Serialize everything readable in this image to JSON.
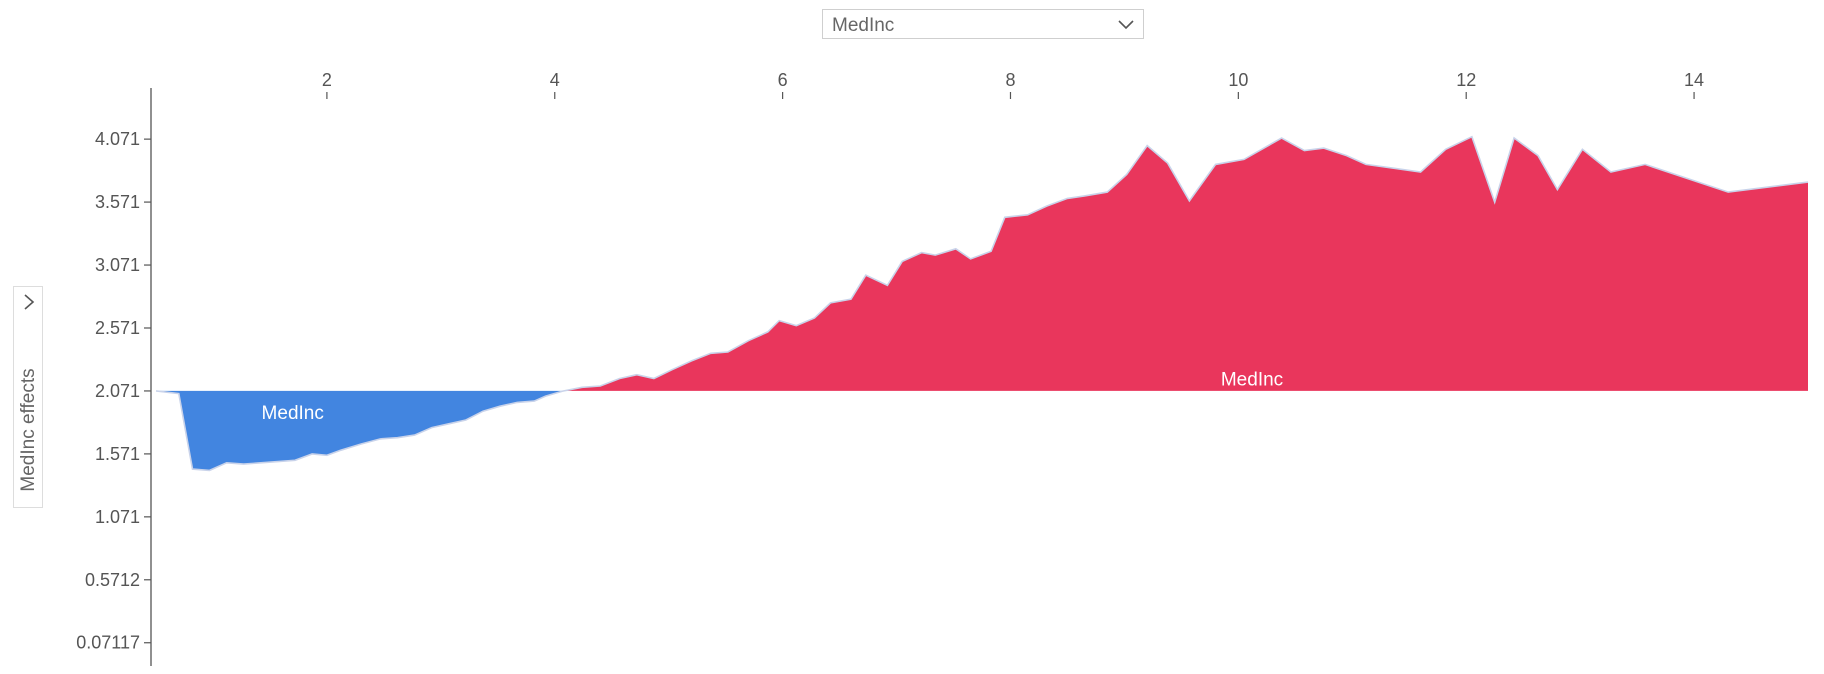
{
  "selector": {
    "value": "MedInc"
  },
  "ylabel_toggle": {
    "label": "MedInc effects"
  },
  "chart_data": {
    "type": "area",
    "title": "",
    "xlabel": "",
    "ylabel": "MedInc effects",
    "baseline": 2.071,
    "xlim": [
      0.5,
      15.0
    ],
    "ylim": [
      -0.05,
      4.35
    ],
    "x_ticks": [
      "2",
      "4",
      "6",
      "8",
      "10",
      "12",
      "14"
    ],
    "y_ticks": [
      "4.071",
      "3.571",
      "3.071",
      "2.571",
      "2.071",
      "1.571",
      "1.071",
      "0.5712",
      "0.07117"
    ],
    "area_labels": {
      "negative": "MedInc",
      "positive": "MedInc"
    },
    "colors": {
      "positive": "#e9365c",
      "negative": "#4285e0",
      "outline": "#c9d3ea",
      "axis": "#555555"
    },
    "series": [
      {
        "x": [
          0.5,
          0.7,
          0.82,
          0.97,
          1.12,
          1.27,
          1.42,
          1.57,
          1.72,
          1.87,
          2.0,
          2.12,
          2.3,
          2.47,
          2.62,
          2.77,
          2.92,
          3.07,
          3.22,
          3.37,
          3.52,
          3.67,
          3.82,
          3.92,
          4.07,
          4.24,
          4.4,
          4.57,
          4.72,
          4.87,
          5.03,
          5.2,
          5.37,
          5.52,
          5.7,
          5.87,
          5.97,
          6.12,
          6.28,
          6.42,
          6.6,
          6.73,
          6.92,
          7.05,
          7.22,
          7.34,
          7.52,
          7.65,
          7.83,
          7.95,
          8.15,
          8.32,
          8.5,
          8.65,
          8.85,
          9.02,
          9.2,
          9.38,
          9.57,
          9.8,
          10.05,
          10.38,
          10.58,
          10.75,
          10.95,
          11.12,
          11.6,
          11.82,
          12.05,
          12.25,
          12.42,
          12.63,
          12.8,
          13.02,
          13.27,
          13.57,
          14.3,
          15.0
        ],
        "y": [
          2.071,
          2.05,
          1.45,
          1.44,
          1.5,
          1.49,
          1.5,
          1.51,
          1.52,
          1.57,
          1.56,
          1.6,
          1.65,
          1.69,
          1.7,
          1.72,
          1.78,
          1.81,
          1.84,
          1.91,
          1.95,
          1.98,
          1.99,
          2.03,
          2.07,
          2.1,
          2.11,
          2.17,
          2.2,
          2.17,
          2.24,
          2.31,
          2.37,
          2.38,
          2.47,
          2.54,
          2.63,
          2.59,
          2.65,
          2.77,
          2.8,
          2.99,
          2.91,
          3.1,
          3.17,
          3.15,
          3.2,
          3.12,
          3.18,
          3.45,
          3.47,
          3.54,
          3.6,
          3.62,
          3.65,
          3.79,
          4.02,
          3.88,
          3.58,
          3.87,
          3.91,
          4.08,
          3.98,
          4.0,
          3.94,
          3.87,
          3.81,
          3.99,
          4.09,
          3.57,
          4.08,
          3.94,
          3.67,
          3.99,
          3.81,
          3.87,
          3.65,
          3.73
        ]
      }
    ]
  }
}
